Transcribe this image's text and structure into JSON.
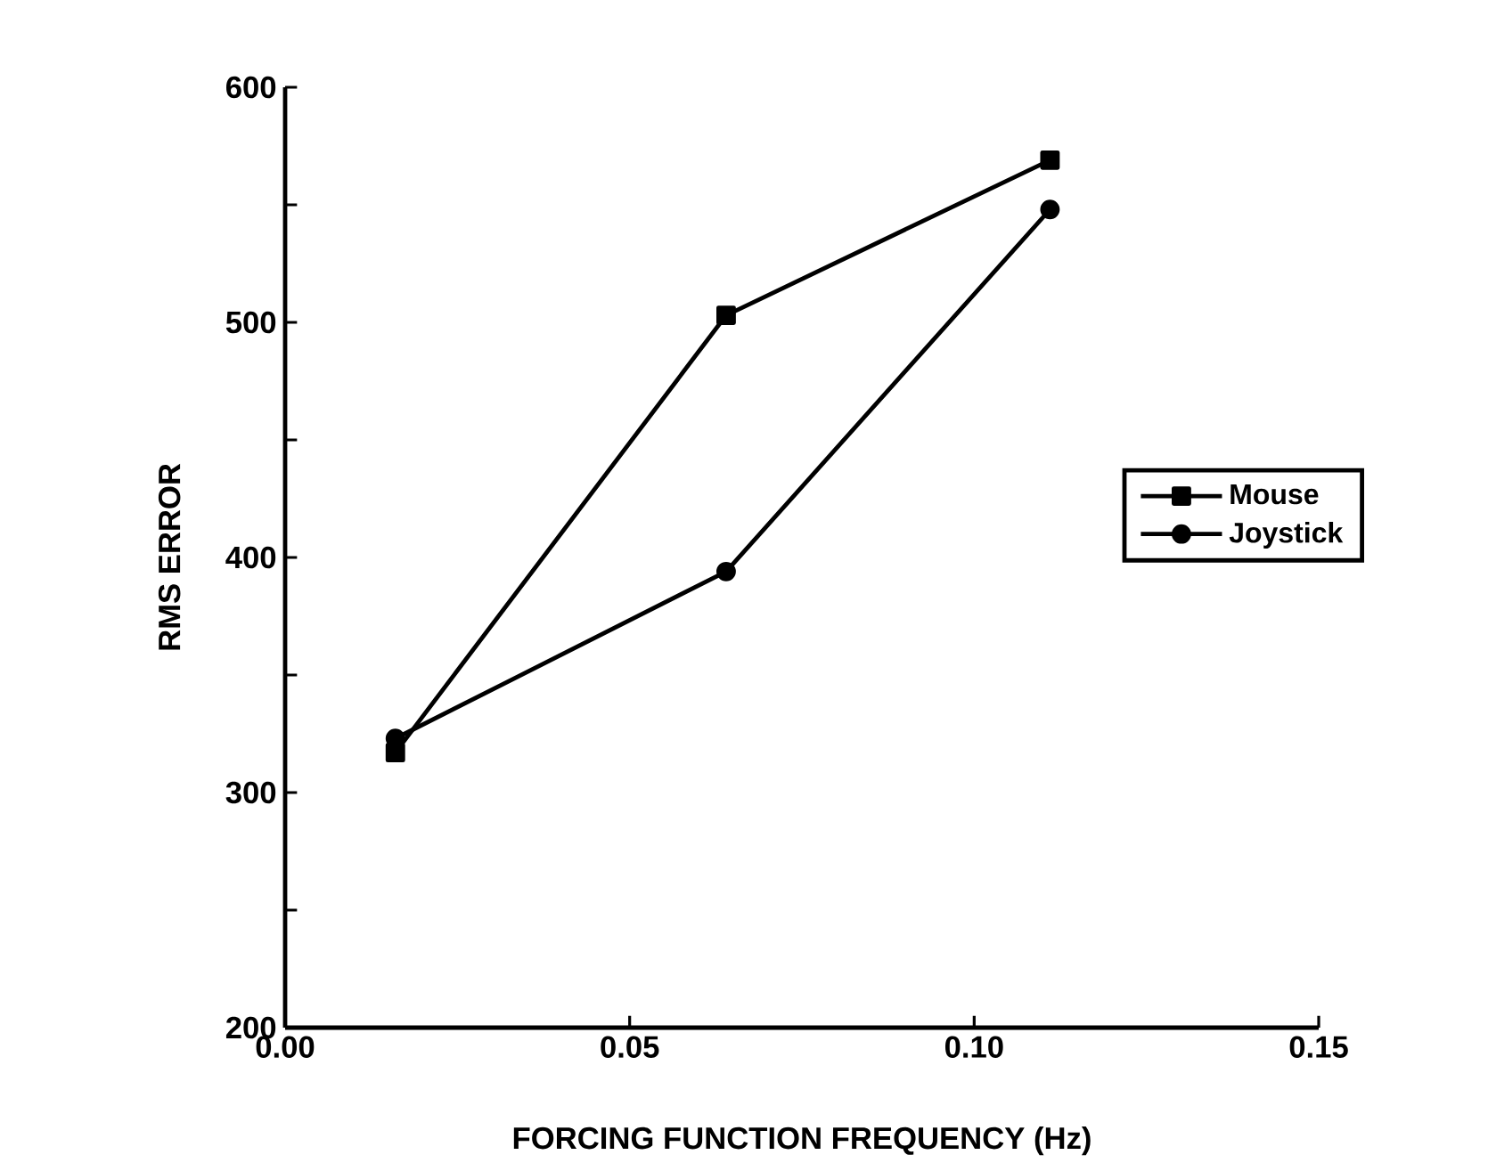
{
  "chart_data": {
    "type": "line",
    "xlabel": "FORCING FUNCTION FREQUENCY (Hz)",
    "ylabel": "RMS  ERROR",
    "xlim": [
      0,
      0.15
    ],
    "xticks": [
      {
        "value": 0,
        "label": "0.00"
      },
      {
        "value": 0.05,
        "label": "0.05"
      },
      {
        "value": 0.1,
        "label": "0.10"
      },
      {
        "value": 0.15,
        "label": "0.15"
      }
    ],
    "ylim": [
      200,
      600
    ],
    "yticks": [
      200,
      {
        "value": 250,
        "label": null
      },
      300,
      {
        "value": 350,
        "label": null
      },
      400,
      {
        "value": 450,
        "label": null
      },
      500,
      {
        "value": 550,
        "label": null
      },
      600
    ],
    "legend": "right",
    "grid": false,
    "line_style": "solid",
    "series": [
      {
        "name": "Mouse",
        "color": "#000000",
        "marker": "square",
        "x": [
          0.016,
          0.064,
          0.111
        ],
        "values": [
          317,
          503,
          569
        ]
      },
      {
        "name": "Joystick",
        "color": "#000000",
        "marker": "circle",
        "x": [
          0.016,
          0.064,
          0.111
        ],
        "values": [
          323,
          394,
          548
        ]
      }
    ]
  }
}
